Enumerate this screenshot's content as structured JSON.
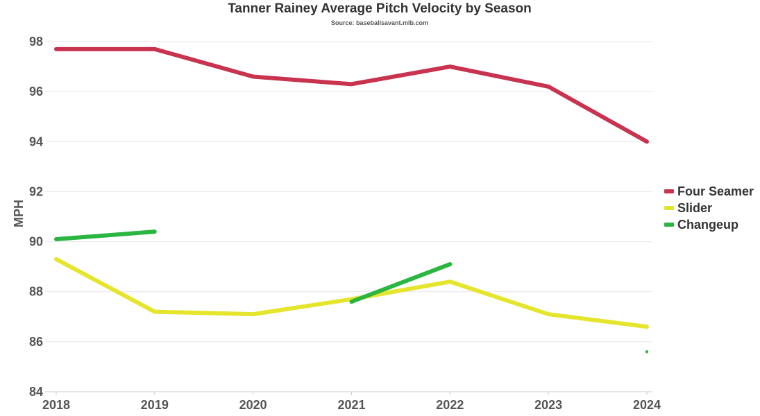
{
  "chart_data": {
    "type": "line",
    "title": "Tanner Rainey Average Pitch Velocity by Season",
    "subtitle": "Source: baseballsavant.mlb.com",
    "xlabel": "",
    "ylabel": "MPH",
    "categories": [
      "2018",
      "2019",
      "2020",
      "2021",
      "2022",
      "2023",
      "2024"
    ],
    "ylim": [
      84,
      98
    ],
    "yticks": [
      84,
      86,
      88,
      90,
      92,
      94,
      96,
      98
    ],
    "grid": true,
    "legend_position": "right",
    "series": [
      {
        "name": "Four Seamer",
        "color": "#c8334f",
        "values": [
          97.7,
          97.7,
          96.6,
          96.3,
          97.0,
          96.2,
          94.0
        ]
      },
      {
        "name": "Slider",
        "color": "#e5e52d",
        "values": [
          89.3,
          87.2,
          87.1,
          87.7,
          88.4,
          87.1,
          86.6
        ]
      },
      {
        "name": "Changeup",
        "color": "#2bb541",
        "values": [
          90.1,
          90.4,
          null,
          87.6,
          89.1,
          null,
          85.6
        ]
      }
    ]
  }
}
